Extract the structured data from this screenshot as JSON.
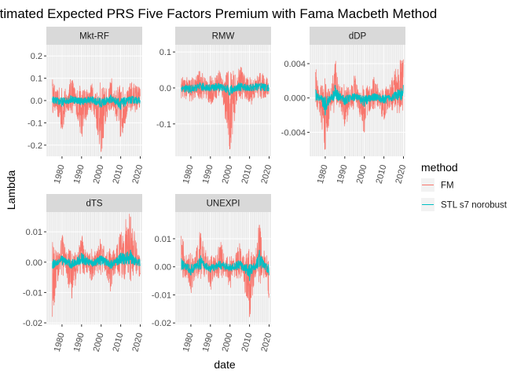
{
  "chart_data": {
    "type": "line",
    "title": "Estimated Expected PRS Five Factors Premium with Fama Macbeth Method",
    "xlabel": "date",
    "ylabel": "Lambda",
    "x_range": [
      1972,
      2021
    ],
    "x_ticks": [
      1980,
      1990,
      2000,
      2010,
      2020
    ],
    "facet_scales": "free_y",
    "grid": true,
    "legend": {
      "title": "method",
      "position": "right",
      "entries": [
        {
          "name": "FM",
          "color": "#F8766D"
        },
        {
          "name": "STL s7 norobust",
          "color": "#00BFC4"
        }
      ]
    },
    "facets": [
      {
        "name": "Mkt-RF",
        "ylim": [
          -0.25,
          0.25
        ],
        "y_ticks": [
          -0.2,
          -0.1,
          0.0,
          0.1,
          0.2
        ],
        "y_tick_labels": [
          "-0.2",
          "-0.1",
          "0.0",
          "0.1",
          "0.2"
        ],
        "x": [
          1975,
          1980,
          1985,
          1990,
          1995,
          2000,
          2005,
          2010,
          2015,
          2020
        ],
        "series": [
          {
            "name": "FM",
            "values": [
              0.07,
              -0.12,
              0.09,
              -0.15,
              0.06,
              -0.23,
              0.08,
              -0.16,
              0.05,
              0.02
            ]
          },
          {
            "name": "STL s7 norobust",
            "values": [
              0.01,
              -0.02,
              0.02,
              -0.01,
              0.01,
              -0.03,
              0.02,
              -0.04,
              0.01,
              0.0
            ]
          }
        ]
      },
      {
        "name": "RMW",
        "ylim": [
          -0.19,
          0.12
        ],
        "y_ticks": [
          -0.1,
          0.0,
          0.1
        ],
        "y_tick_labels": [
          "-0.1",
          "0.0",
          "0.1"
        ],
        "x": [
          1975,
          1980,
          1985,
          1990,
          1995,
          2000,
          2005,
          2010,
          2015,
          2020
        ],
        "series": [
          {
            "name": "FM",
            "values": [
              0.01,
              -0.02,
              0.03,
              -0.03,
              0.04,
              -0.17,
              0.05,
              -0.03,
              0.02,
              0.0
            ]
          },
          {
            "name": "STL s7 norobust",
            "values": [
              0.0,
              -0.01,
              0.01,
              0.0,
              0.01,
              -0.02,
              0.01,
              0.0,
              0.01,
              0.0
            ]
          }
        ]
      },
      {
        "name": "dDP",
        "ylim": [
          -0.0068,
          0.0062
        ],
        "y_ticks": [
          -0.004,
          0.0,
          0.004
        ],
        "y_tick_labels": [
          "-0.004",
          "0.000",
          "0.004"
        ],
        "x": [
          1975,
          1980,
          1985,
          1990,
          1995,
          2000,
          2005,
          2010,
          2015,
          2020
        ],
        "series": [
          {
            "name": "FM",
            "values": [
              0.003,
              -0.006,
              0.004,
              -0.003,
              0.002,
              -0.004,
              0.002,
              -0.002,
              0.002,
              0.0045
            ]
          },
          {
            "name": "STL s7 norobust",
            "values": [
              0.001,
              -0.002,
              0.0015,
              -0.0008,
              0.0005,
              -0.001,
              0.0005,
              -0.0006,
              0.0005,
              0.0015
            ]
          }
        ]
      },
      {
        "name": "dTS",
        "ylim": [
          -0.0205,
          0.0165
        ],
        "y_ticks": [
          -0.02,
          -0.01,
          0.0,
          0.01
        ],
        "y_tick_labels": [
          "-0.02",
          "-0.01",
          "0.00",
          "0.01"
        ],
        "x": [
          1975,
          1980,
          1985,
          1990,
          1995,
          2000,
          2005,
          2010,
          2015,
          2020
        ],
        "series": [
          {
            "name": "FM",
            "values": [
              -0.018,
              0.008,
              -0.012,
              0.007,
              -0.006,
              0.006,
              -0.008,
              0.009,
              0.015,
              -0.004
            ]
          },
          {
            "name": "STL s7 norobust",
            "values": [
              -0.002,
              0.002,
              -0.002,
              0.003,
              -0.001,
              0.002,
              -0.002,
              0.003,
              0.004,
              -0.001
            ]
          }
        ]
      },
      {
        "name": "UNEXPI",
        "ylim": [
          -0.0205,
          0.0195
        ],
        "y_ticks": [
          -0.02,
          -0.01,
          0.0,
          0.01
        ],
        "y_tick_labels": [
          "-0.02",
          "-0.01",
          "0.00",
          "0.01"
        ],
        "x": [
          1975,
          1980,
          1985,
          1990,
          1995,
          2000,
          2005,
          2010,
          2015,
          2020
        ],
        "series": [
          {
            "name": "FM",
            "values": [
              0.011,
              -0.008,
              0.012,
              -0.006,
              0.007,
              -0.005,
              0.006,
              -0.018,
              0.015,
              -0.01
            ]
          },
          {
            "name": "STL s7 norobust",
            "values": [
              0.003,
              -0.003,
              0.004,
              -0.002,
              0.002,
              -0.001,
              0.002,
              -0.005,
              0.006,
              -0.003
            ]
          }
        ]
      }
    ]
  }
}
